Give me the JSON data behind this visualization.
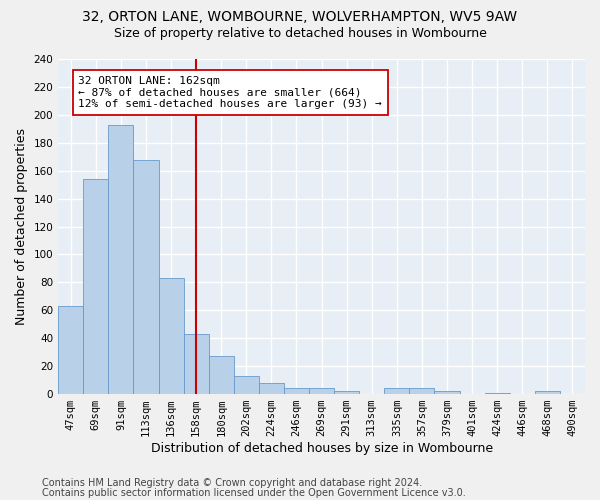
{
  "title_line1": "32, ORTON LANE, WOMBOURNE, WOLVERHAMPTON, WV5 9AW",
  "title_line2": "Size of property relative to detached houses in Wombourne",
  "xlabel": "Distribution of detached houses by size in Wombourne",
  "ylabel": "Number of detached properties",
  "bar_color": "#b8d0e8",
  "bar_edge_color": "#6699cc",
  "bg_color": "#e8eef5",
  "grid_color": "#ffffff",
  "fig_color": "#f0f0f0",
  "categories": [
    "47sqm",
    "69sqm",
    "91sqm",
    "113sqm",
    "136sqm",
    "158sqm",
    "180sqm",
    "202sqm",
    "224sqm",
    "246sqm",
    "269sqm",
    "291sqm",
    "313sqm",
    "335sqm",
    "357sqm",
    "379sqm",
    "401sqm",
    "424sqm",
    "446sqm",
    "468sqm",
    "490sqm"
  ],
  "values": [
    63,
    154,
    193,
    168,
    83,
    43,
    27,
    13,
    8,
    4,
    4,
    2,
    0,
    4,
    4,
    2,
    0,
    1,
    0,
    2,
    0
  ],
  "annotation_line1": "32 ORTON LANE: 162sqm",
  "annotation_line2": "← 87% of detached houses are smaller (664)",
  "annotation_line3": "12% of semi-detached houses are larger (93) →",
  "vline_color": "#cc0000",
  "annotation_box_color": "#ffffff",
  "annotation_box_edge": "#cc0000",
  "ylim": [
    0,
    240
  ],
  "yticks": [
    0,
    20,
    40,
    60,
    80,
    100,
    120,
    140,
    160,
    180,
    200,
    220,
    240
  ],
  "footnote1": "Contains HM Land Registry data © Crown copyright and database right 2024.",
  "footnote2": "Contains public sector information licensed under the Open Government Licence v3.0.",
  "title_fontsize": 10,
  "subtitle_fontsize": 9,
  "axis_label_fontsize": 9,
  "tick_fontsize": 7.5,
  "annotation_fontsize": 8,
  "footnote_fontsize": 7
}
